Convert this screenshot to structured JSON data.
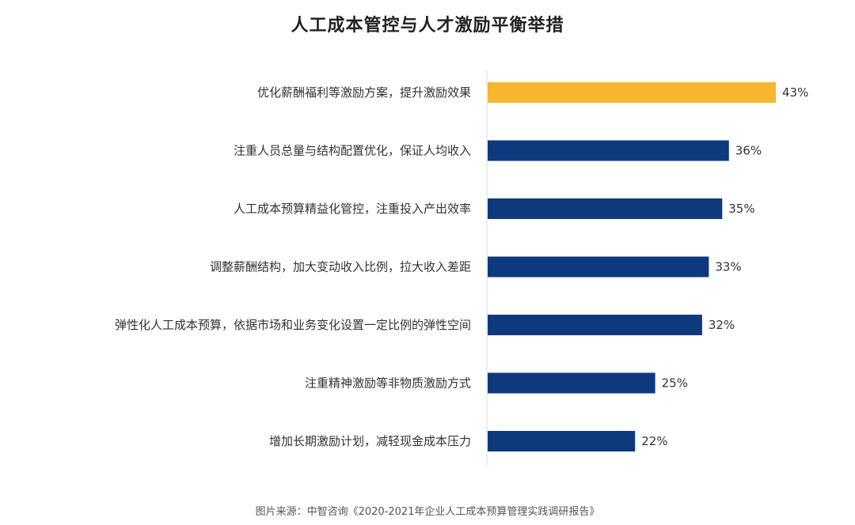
{
  "chart_data": {
    "type": "bar",
    "orientation": "horizontal",
    "title": "人工成本管控与人才激励平衡举措",
    "categories": [
      "优化薪酬福利等激励方案，提升激励效果",
      "注重人员总量与结构配置优化，保证人均收入",
      "人工成本预算精益化管控，注重投入产出效率",
      "调整薪酬结构，加大变动收入比例，拉大收入差距",
      "弹性化人工成本预算，依据市场和业务变化设置一定比例的弹性空间",
      "注重精神激励等非物质激励方式",
      "增加长期激励计划，减轻现金成本压力"
    ],
    "values": [
      43,
      36,
      35,
      33,
      32,
      25,
      22
    ],
    "data_labels": [
      "43%",
      "36%",
      "35%",
      "33%",
      "32%",
      "25%",
      "22%"
    ],
    "unit": "%",
    "xlim": [
      0,
      43
    ],
    "grid": false,
    "legend": "none",
    "colors": {
      "highlight": "#F6B62E",
      "default": "#0E3A7D",
      "axis": "#D9D9D9"
    },
    "highlight_index": 0
  },
  "source": "图片来源：中智咨询《2020-2021年企业人工成本预算管理实践调研报告》"
}
